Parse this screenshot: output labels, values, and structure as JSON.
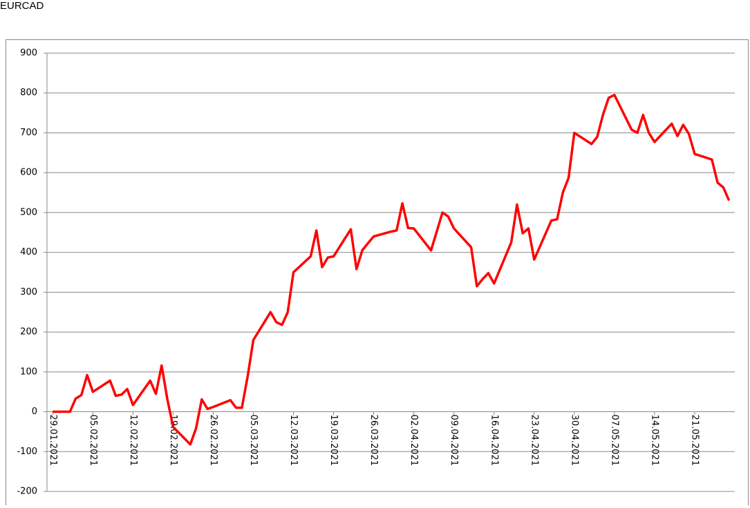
{
  "chart_data": {
    "type": "line",
    "title": "EURCAD",
    "x": [
      "29.01.2021",
      "01.02.2021",
      "02.02.2021",
      "03.02.2021",
      "04.02.2021",
      "05.02.2021",
      "08.02.2021",
      "09.02.2021",
      "10.02.2021",
      "11.02.2021",
      "12.02.2021",
      "15.02.2021",
      "16.02.2021",
      "17.02.2021",
      "18.02.2021",
      "19.02.2021",
      "22.02.2021",
      "23.02.2021",
      "24.02.2021",
      "25.02.2021",
      "26.02.2021",
      "01.03.2021",
      "02.03.2021",
      "03.03.2021",
      "04.03.2021",
      "05.03.2021",
      "08.03.2021",
      "09.03.2021",
      "10.03.2021",
      "11.03.2021",
      "12.03.2021",
      "15.03.2021",
      "16.03.2021",
      "17.03.2021",
      "18.03.2021",
      "19.03.2021",
      "22.03.2021",
      "23.03.2021",
      "24.03.2021",
      "25.03.2021",
      "26.03.2021",
      "29.03.2021",
      "30.03.2021",
      "31.03.2021",
      "01.04.2021",
      "02.04.2021",
      "05.04.2021",
      "07.04.2021",
      "08.04.2021",
      "09.04.2021",
      "12.04.2021",
      "13.04.2021",
      "14.04.2021",
      "15.04.2021",
      "16.04.2021",
      "19.04.2021",
      "20.04.2021",
      "21.04.2021",
      "22.04.2021",
      "23.04.2021",
      "26.04.2021",
      "27.04.2021",
      "28.04.2021",
      "29.04.2021",
      "30.04.2021",
      "03.05.2021",
      "04.05.2021",
      "05.05.2021",
      "06.05.2021",
      "07.05.2021",
      "10.05.2021",
      "11.05.2021",
      "12.05.2021",
      "13.05.2021",
      "14.05.2021",
      "17.05.2021",
      "18.05.2021",
      "19.05.2021",
      "20.05.2021",
      "21.05.2021",
      "24.05.2021",
      "25.05.2021",
      "26.05.2021",
      "27.05.2021"
    ],
    "series": [
      {
        "name": "EURCAD",
        "color": "#ff0000",
        "values": [
          0,
          0,
          33,
          42,
          92,
          50,
          78,
          40,
          43,
          57,
          17,
          78,
          45,
          116,
          31,
          -38,
          -82,
          -42,
          31,
          7,
          12,
          29,
          10,
          10,
          88,
          180,
          250,
          225,
          218,
          250,
          350,
          390,
          455,
          363,
          387,
          390,
          458,
          358,
          405,
          423,
          440,
          452,
          455,
          523,
          461,
          460,
          405,
          500,
          490,
          460,
          413,
          315,
          333,
          348,
          322,
          425,
          520,
          448,
          460,
          382,
          480,
          483,
          550,
          587,
          700,
          672,
          690,
          745,
          788,
          795,
          708,
          700,
          745,
          700,
          677,
          723,
          692,
          720,
          697,
          647,
          633,
          575,
          563,
          530
        ]
      }
    ],
    "xlim": [
      "28.01.2021",
      "28.05.2021"
    ],
    "xticks": [
      "29.01.2021",
      "05.02.2021",
      "12.02.2021",
      "19.02.2021",
      "26.02.2021",
      "05.03.2021",
      "12.03.2021",
      "19.03.2021",
      "26.03.2021",
      "02.04.2021",
      "09.04.2021",
      "16.04.2021",
      "23.04.2021",
      "30.04.2021",
      "07.05.2021",
      "14.05.2021",
      "21.05.2021"
    ],
    "ylim": [
      -200,
      900
    ],
    "yticks": [
      -200,
      -100,
      0,
      100,
      200,
      300,
      400,
      500,
      600,
      700,
      800,
      900
    ],
    "grid": true
  }
}
